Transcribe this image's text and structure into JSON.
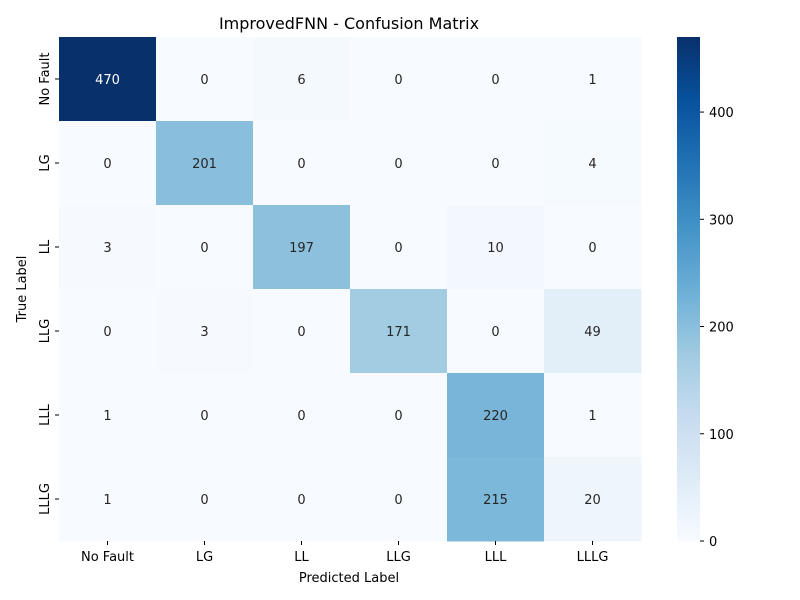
{
  "chart_data": {
    "type": "heatmap",
    "title": "ImprovedFNN - Confusion Matrix",
    "xlabel": "Predicted Label",
    "ylabel": "True Label",
    "x_categories": [
      "No Fault",
      "LG",
      "LL",
      "LLG",
      "LLL",
      "LLLG"
    ],
    "y_categories": [
      "No Fault",
      "LG",
      "LL",
      "LLG",
      "LLL",
      "LLLG"
    ],
    "values": [
      [
        470,
        0,
        6,
        0,
        0,
        1
      ],
      [
        0,
        201,
        0,
        0,
        0,
        4
      ],
      [
        3,
        0,
        197,
        0,
        10,
        0
      ],
      [
        0,
        3,
        0,
        171,
        0,
        49
      ],
      [
        1,
        0,
        0,
        0,
        220,
        1
      ],
      [
        1,
        0,
        0,
        0,
        215,
        20
      ]
    ],
    "colorbar": {
      "range": [
        0,
        470
      ],
      "ticks": [
        0,
        100,
        200,
        300,
        400
      ]
    },
    "colormap": "Blues",
    "grid": false,
    "legend": "right"
  }
}
